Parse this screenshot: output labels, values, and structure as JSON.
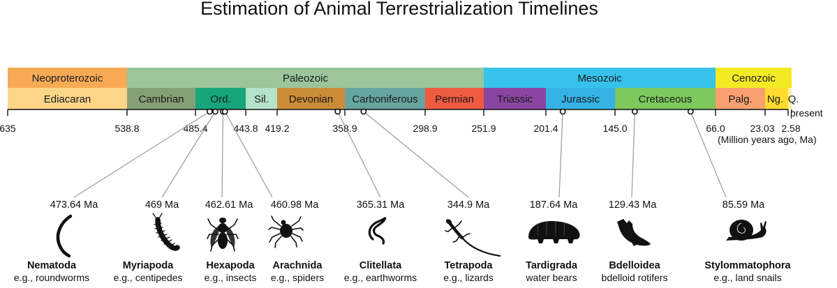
{
  "title": "Estimation of Animal Terrestrialization Timelines",
  "colors": {
    "neoproterozoic": "#F7AA55",
    "ediacaran": "#FCD586",
    "paleozoic": "#9CC59B",
    "cambrian": "#86A075",
    "ordovician": "#17A57A",
    "silurian": "#B3E3C9",
    "devonian": "#CB8C37",
    "carboniferous": "#67A5A0",
    "permian": "#EF5B3F",
    "mesozoic": "#36C2EA",
    "triassic": "#8A45A2",
    "jurassic": "#35B3E7",
    "cretaceous": "#7DC95E",
    "cenozoic": "#F3EA23",
    "paleogene": "#F8A06F",
    "neogene": "#FFDC2E",
    "quaternary": "#FFF3A8"
  },
  "timeline": {
    "eras": [
      {
        "label": "Neoproterozoic",
        "start": 635,
        "end": 538.8,
        "color_key": "neoproterozoic"
      },
      {
        "label": "Paleozoic",
        "start": 538.8,
        "end": 251.9,
        "color_key": "paleozoic"
      },
      {
        "label": "Mesozoic",
        "start": 251.9,
        "end": 66.0,
        "color_key": "mesozoic"
      },
      {
        "label": "Cenozoic",
        "start": 66.0,
        "end": 0,
        "color_key": "cenozoic"
      }
    ],
    "periods": [
      {
        "label": "Ediacaran",
        "start": 635,
        "end": 538.8,
        "color_key": "ediacaran"
      },
      {
        "label": "Cambrian",
        "start": 538.8,
        "end": 485.4,
        "color_key": "cambrian"
      },
      {
        "label": "Ord.",
        "start": 485.4,
        "end": 443.8,
        "color_key": "ordovician"
      },
      {
        "label": "Sil.",
        "start": 443.8,
        "end": 419.2,
        "color_key": "silurian"
      },
      {
        "label": "Devonian",
        "start": 419.2,
        "end": 358.9,
        "color_key": "devonian"
      },
      {
        "label": "Carboniferous",
        "start": 358.9,
        "end": 298.9,
        "color_key": "carboniferous"
      },
      {
        "label": "Permian",
        "start": 298.9,
        "end": 251.9,
        "color_key": "permian"
      },
      {
        "label": "Triassic",
        "start": 251.9,
        "end": 201.4,
        "color_key": "triassic"
      },
      {
        "label": "Jurassic",
        "start": 201.4,
        "end": 145.0,
        "color_key": "jurassic"
      },
      {
        "label": "Cretaceous",
        "start": 145.0,
        "end": 66.0,
        "color_key": "cretaceous"
      },
      {
        "label": "Palg.",
        "start": 66.0,
        "end": 23.03,
        "color_key": "paleogene"
      },
      {
        "label": "Ng.",
        "start": 23.03,
        "end": 2.58,
        "color_key": "neogene"
      },
      {
        "label": "Q.",
        "start": 2.58,
        "end": 0,
        "color_key": "quaternary"
      }
    ],
    "ticks": [
      {
        "value": 635,
        "label": "635"
      },
      {
        "value": 538.8,
        "label": "538.8"
      },
      {
        "value": 485.4,
        "label": "485.4"
      },
      {
        "value": 443.8,
        "label": "443.8"
      },
      {
        "value": 419.2,
        "label": "419.2"
      },
      {
        "value": 358.9,
        "label": "358.9"
      },
      {
        "value": 298.9,
        "label": "298.9"
      },
      {
        "value": 251.9,
        "label": "251.9"
      },
      {
        "value": 201.4,
        "label": "201.4"
      },
      {
        "value": 145.0,
        "label": "145.0"
      },
      {
        "value": 66.0,
        "label": "66.0"
      },
      {
        "value": 23.03,
        "label": "23.03"
      },
      {
        "value": 2.58,
        "label": "2.58"
      }
    ],
    "present_label": "present",
    "unit_label": "(Million years ago, Ma)"
  },
  "events": [
    {
      "taxon": "Nematoda",
      "example": "e.g., roundworms",
      "age": 473.64,
      "age_label": "473.64 Ma",
      "icon": "nematode-icon"
    },
    {
      "taxon": "Myriapoda",
      "example": "e.g., centipedes",
      "age": 469,
      "age_label": "469 Ma",
      "icon": "centipede-icon"
    },
    {
      "taxon": "Hexapoda",
      "example": "e.g., insects",
      "age": 462.61,
      "age_label": "462.61 Ma",
      "icon": "fly-icon"
    },
    {
      "taxon": "Arachnida",
      "example": "e.g., spiders",
      "age": 460.98,
      "age_label": "460.98 Ma",
      "icon": "mite-icon"
    },
    {
      "taxon": "Clitellata",
      "example": "e.g., earthworms",
      "age": 365.31,
      "age_label": "365.31 Ma",
      "icon": "earthworm-icon"
    },
    {
      "taxon": "Tetrapoda",
      "example": "e.g., lizards",
      "age": 344.9,
      "age_label": "344.9 Ma",
      "icon": "lizard-icon"
    },
    {
      "taxon": "Tardigrada",
      "example": "water bears",
      "age": 187.64,
      "age_label": "187.64 Ma",
      "icon": "tardigrade-icon"
    },
    {
      "taxon": "Bdelloidea",
      "example": "bdelloid rotifers",
      "age": 129.43,
      "age_label": "129.43 Ma",
      "icon": "rotifer-icon"
    },
    {
      "taxon": "Stylommatophora",
      "example": "e.g., land snails",
      "age": 85.59,
      "age_label": "85.59 Ma",
      "icon": "snail-icon"
    }
  ]
}
